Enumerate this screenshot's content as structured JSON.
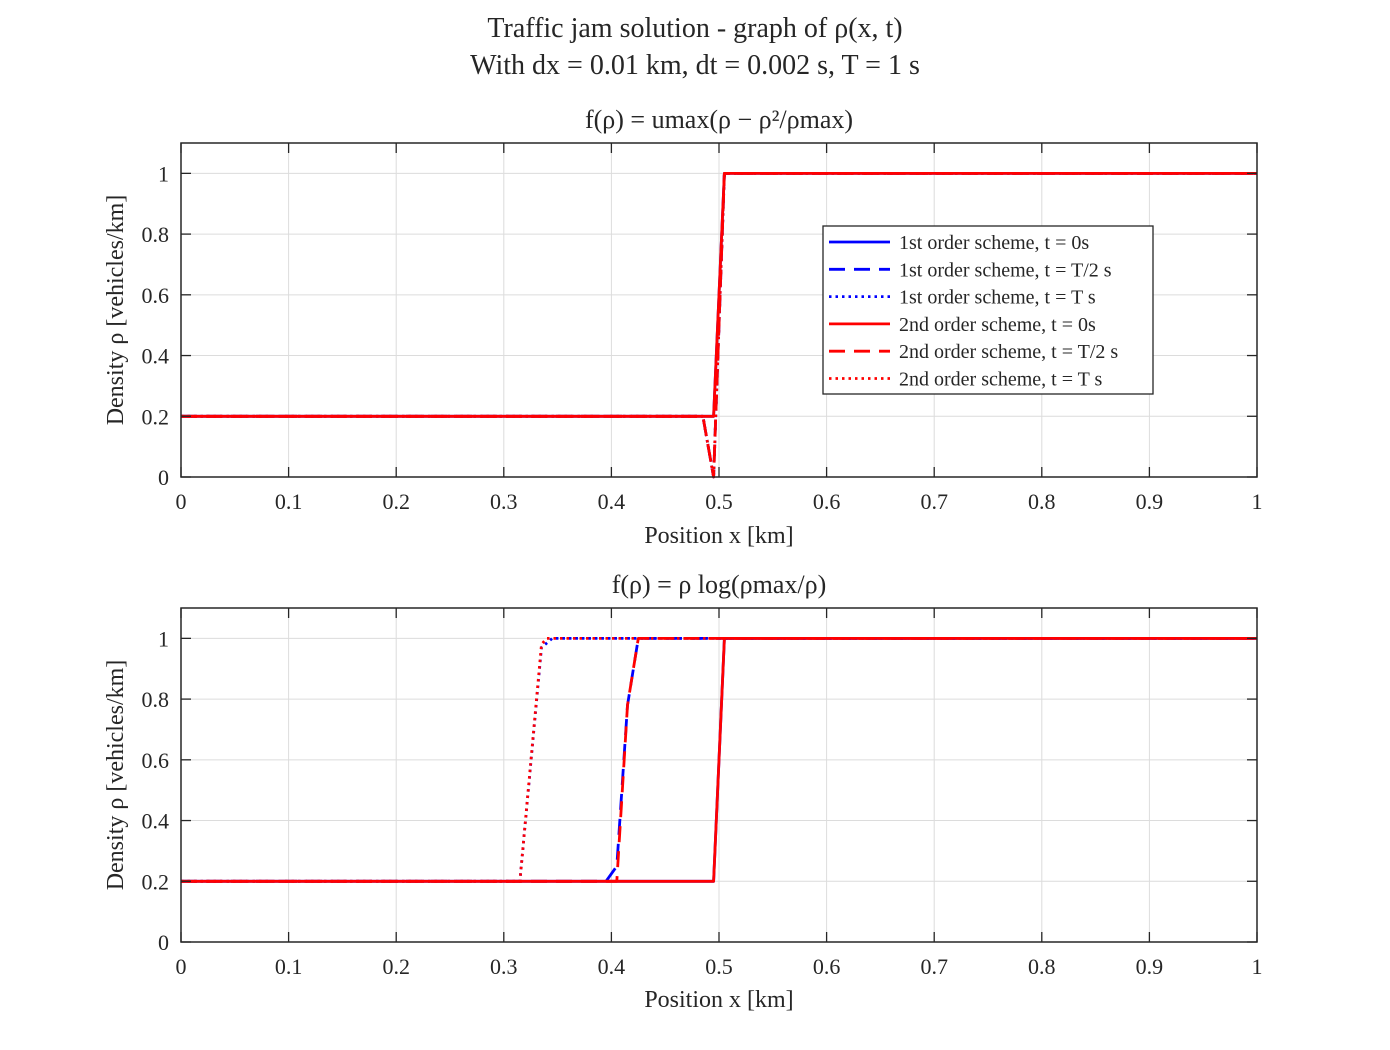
{
  "figure": {
    "title_line1": "Traffic jam solution - graph of ρ(x, t)",
    "title_line2": "With dx = 0.01 km, dt = 0.002 s, T = 1 s"
  },
  "colors": {
    "blue": "#0000ff",
    "red": "#ff0000",
    "axis": "#262626",
    "grid": "#dcdcdc"
  },
  "chart_data": [
    {
      "type": "line",
      "title": "f(ρ) = umax(ρ − ρ²/ρmax)",
      "xlabel": "Position x [km]",
      "ylabel": "Density ρ [vehicles/km]",
      "xlim": [
        0,
        1
      ],
      "ylim": [
        0,
        1.1
      ],
      "xticks": [
        "0",
        "0.1",
        "0.2",
        "0.3",
        "0.4",
        "0.5",
        "0.6",
        "0.7",
        "0.8",
        "0.9",
        "1"
      ],
      "yticks": [
        "0",
        "0.2",
        "0.4",
        "0.6",
        "0.8",
        "1"
      ],
      "grid": true,
      "legend_position": "center-right",
      "series": [
        {
          "name": "1st order scheme, t = 0s",
          "color": "blue",
          "style": "solid",
          "x": [
            0,
            0.495,
            0.505,
            1
          ],
          "y": [
            0.2,
            0.2,
            1,
            1
          ]
        },
        {
          "name": "1st order scheme, t = T/2 s",
          "color": "blue",
          "style": "dashed",
          "x": [
            0,
            0.485,
            0.495,
            0.505,
            1
          ],
          "y": [
            0.2,
            0.2,
            0,
            1,
            1
          ]
        },
        {
          "name": "1st order scheme, t = T s",
          "color": "blue",
          "style": "dotted",
          "x": [
            0,
            0.485,
            0.495,
            0.505,
            1
          ],
          "y": [
            0.2,
            0.2,
            0,
            1,
            1
          ]
        },
        {
          "name": "2nd order scheme, t = 0s",
          "color": "red",
          "style": "solid",
          "x": [
            0,
            0.495,
            0.505,
            1
          ],
          "y": [
            0.2,
            0.2,
            1,
            1
          ]
        },
        {
          "name": "2nd order scheme, t = T/2 s",
          "color": "red",
          "style": "dashed",
          "x": [
            0,
            0.485,
            0.495,
            0.505,
            1
          ],
          "y": [
            0.2,
            0.2,
            0,
            1,
            1
          ]
        },
        {
          "name": "2nd order scheme, t = T s",
          "color": "red",
          "style": "dotted",
          "x": [
            0,
            0.485,
            0.495,
            0.505,
            1
          ],
          "y": [
            0.2,
            0.2,
            0,
            1,
            1
          ]
        }
      ]
    },
    {
      "type": "line",
      "title": "f(ρ) = ρ log(ρmax/ρ)",
      "xlabel": "Position x [km]",
      "ylabel": "Density ρ [vehicles/km]",
      "xlim": [
        0,
        1
      ],
      "ylim": [
        0,
        1.1
      ],
      "xticks": [
        "0",
        "0.1",
        "0.2",
        "0.3",
        "0.4",
        "0.5",
        "0.6",
        "0.7",
        "0.8",
        "0.9",
        "1"
      ],
      "yticks": [
        "0",
        "0.2",
        "0.4",
        "0.6",
        "0.8",
        "1"
      ],
      "grid": true,
      "series": [
        {
          "name": "1st order scheme, t = 0s",
          "color": "blue",
          "style": "solid",
          "x": [
            0,
            0.495,
            0.505,
            1
          ],
          "y": [
            0.2,
            0.2,
            1,
            1
          ]
        },
        {
          "name": "1st order scheme, t = T/2 s",
          "color": "blue",
          "style": "dashed",
          "x": [
            0,
            0.395,
            0.405,
            0.415,
            0.425,
            1
          ],
          "y": [
            0.2,
            0.2,
            0.25,
            0.78,
            1,
            1
          ]
        },
        {
          "name": "1st order scheme, t = T s",
          "color": "blue",
          "style": "dotted",
          "x": [
            0,
            0.315,
            0.335,
            0.345,
            1
          ],
          "y": [
            0.2,
            0.2,
            0.97,
            1,
            1
          ]
        },
        {
          "name": "2nd order scheme, t = 0s",
          "color": "red",
          "style": "solid",
          "x": [
            0,
            0.495,
            0.505,
            1
          ],
          "y": [
            0.2,
            0.2,
            1,
            1
          ]
        },
        {
          "name": "2nd order scheme, t = T/2 s",
          "color": "red",
          "style": "dashed",
          "x": [
            0,
            0.405,
            0.415,
            0.425,
            1
          ],
          "y": [
            0.2,
            0.2,
            0.78,
            1,
            1
          ]
        },
        {
          "name": "2nd order scheme, t = T s",
          "color": "red",
          "style": "dotted",
          "x": [
            0,
            0.315,
            0.335,
            0.34,
            1
          ],
          "y": [
            0.2,
            0.2,
            0.98,
            1,
            1
          ]
        }
      ]
    }
  ]
}
